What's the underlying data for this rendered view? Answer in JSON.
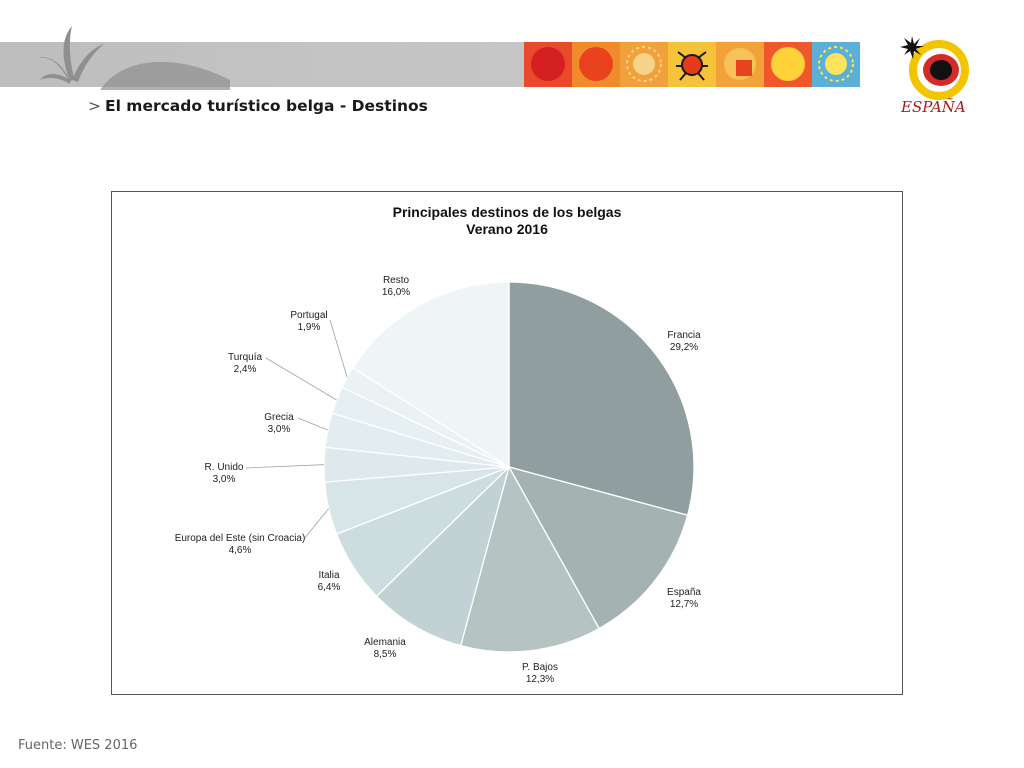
{
  "slide": {
    "title_marker": ">",
    "title": "El mercado turístico belga - Destinos",
    "footer": "Fuente: WES 2016",
    "logo_text": "ESPAÑA"
  },
  "colors": {
    "header_band": "#c4c4c4",
    "header_art": "#8f8f8f",
    "logo_red": "#d42a2a",
    "logo_yellow": "#f2c500"
  },
  "header_tiles": [
    {
      "bg": "#e94a2c",
      "fg": "#d42020",
      "motif": "circle"
    },
    {
      "bg": "#f08a2a",
      "fg": "#e8421e",
      "motif": "circle"
    },
    {
      "bg": "#f2a03a",
      "fg": "#f6d28a",
      "motif": "sun"
    },
    {
      "bg": "#f6c23a",
      "fg": "#1a1a1a",
      "motif": "bug"
    },
    {
      "bg": "#f3a23a",
      "fg": "#e8421e",
      "motif": "square"
    },
    {
      "bg": "#f0582c",
      "fg": "#ffd23a",
      "motif": "circle"
    },
    {
      "bg": "#5ab0d8",
      "fg": "#ffe35a",
      "motif": "sun"
    }
  ],
  "chart_data": {
    "type": "pie",
    "title": [
      "Principales destinos de los belgas",
      "Verano 2016"
    ],
    "slices": [
      {
        "label": "Francia",
        "value_label": "29,2%",
        "value": 29.2,
        "color": "#909e9f"
      },
      {
        "label": "España",
        "value_label": "12,7%",
        "value": 12.7,
        "color": "#a4b2b2"
      },
      {
        "label": "P. Bajos",
        "value_label": "12,3%",
        "value": 12.3,
        "color": "#b5c3c3"
      },
      {
        "label": "Alemania",
        "value_label": "8,5%",
        "value": 8.5,
        "color": "#c2d1d3"
      },
      {
        "label": "Italia",
        "value_label": "6,4%",
        "value": 6.4,
        "color": "#cddcdf"
      },
      {
        "label": "Europa del Este (sin Croacia)",
        "value_label": "4,6%",
        "value": 4.6,
        "color": "#d7e5e8"
      },
      {
        "label": "R. Unido",
        "value_label": "3,0%",
        "value": 3.0,
        "color": "#dde9ec"
      },
      {
        "label": "Grecia",
        "value_label": "3,0%",
        "value": 3.0,
        "color": "#e2edef"
      },
      {
        "label": "Turquía",
        "value_label": "2,4%",
        "value": 2.4,
        "color": "#e6f0f2"
      },
      {
        "label": "Portugal",
        "value_label": "1,9%",
        "value": 1.9,
        "color": "#eaf2f4"
      },
      {
        "label": "Resto",
        "value_label": "16,0%",
        "value": 16.0,
        "color": "#eff5f6"
      }
    ],
    "start_angle": "12 o'clock",
    "direction": "clockwise",
    "legend": "none (labels beside slices)"
  }
}
